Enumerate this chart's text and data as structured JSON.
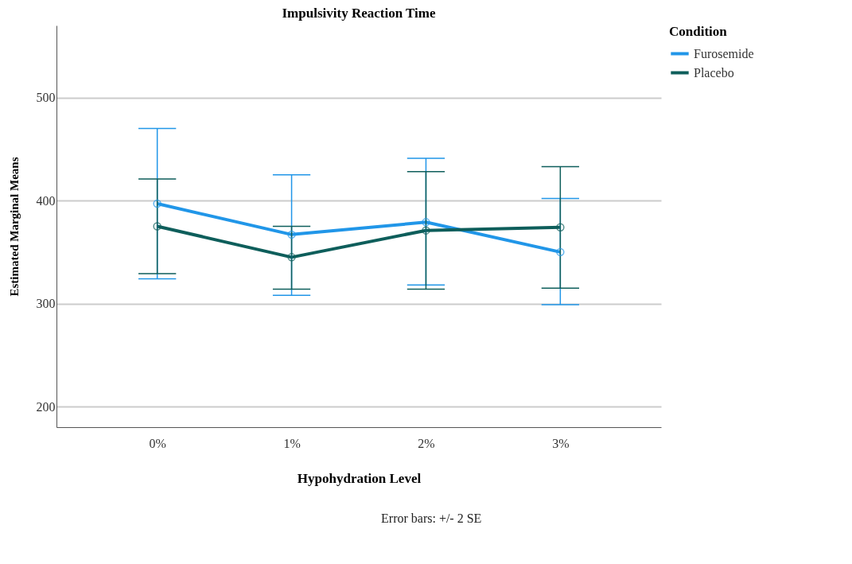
{
  "chart_data": {
    "type": "line",
    "title": "Impulsivity Reaction Time",
    "xlabel": "Hypohydration Level",
    "ylabel": "Estimated Marginal Means",
    "legend_title": "Condition",
    "categories": [
      "0%",
      "1%",
      "2%",
      "3%"
    ],
    "series": [
      {
        "name": "Furosemide",
        "color": "#2196e8",
        "values": [
          397,
          367,
          379,
          350
        ],
        "errors": [
          [
            324,
            470
          ],
          [
            308,
            425
          ],
          [
            318,
            441
          ],
          [
            299,
            402
          ]
        ]
      },
      {
        "name": "Placebo",
        "color": "#0e5e5b",
        "values": [
          375,
          345,
          371,
          374
        ],
        "errors": [
          [
            329,
            421
          ],
          [
            314,
            375
          ],
          [
            314,
            428
          ],
          [
            315,
            433
          ]
        ]
      }
    ],
    "ylim": [
      180,
      570
    ],
    "yticks": [
      200,
      300,
      400,
      500
    ],
    "grid": "y",
    "legend": "top right",
    "marker": "circle",
    "line_style": "solid",
    "annotations": [
      "Error bars: +/- 2 SE"
    ]
  }
}
